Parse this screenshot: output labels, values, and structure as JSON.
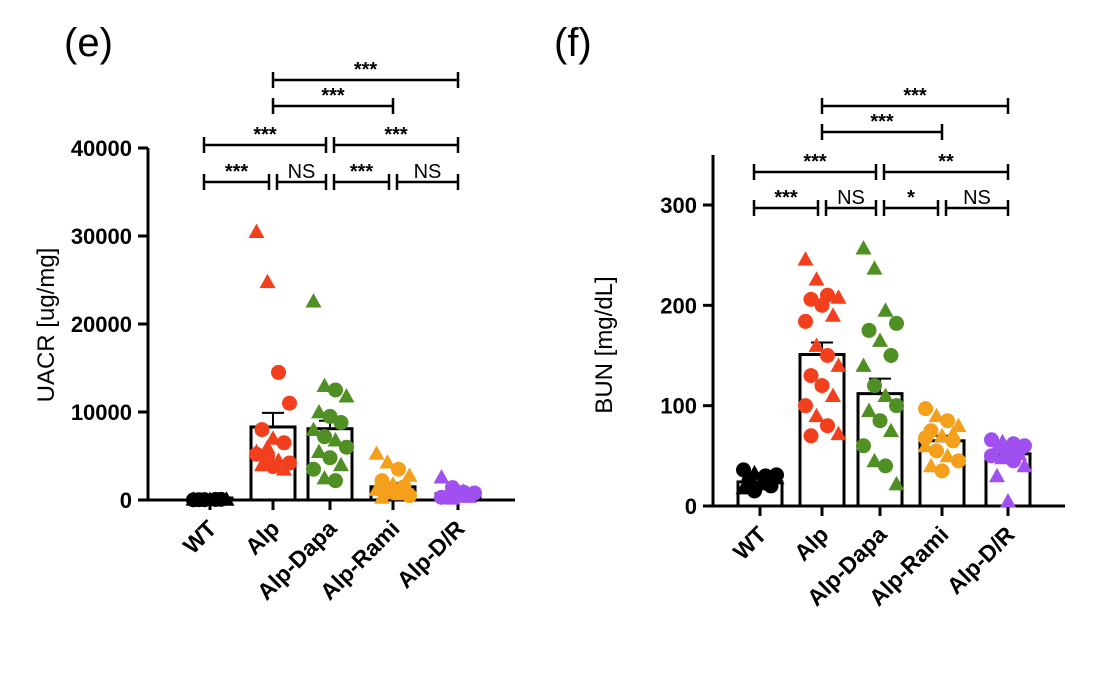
{
  "chart_data": [
    {
      "panel": "(e)",
      "type": "bar",
      "ylabel": "UACR [ug/mg]",
      "xlabel": "",
      "ylim": [
        0,
        40000
      ],
      "yticks": [
        0,
        10000,
        20000,
        30000,
        40000
      ],
      "categories": [
        "WT",
        "Alp",
        "Alp-Dapa",
        "Alp-Rami",
        "Alp-D/R"
      ],
      "colors": [
        "#000000",
        "#f2401e",
        "#4f8f23",
        "#f5a01a",
        "#a050f0"
      ],
      "means": [
        50,
        8300,
        8100,
        1500,
        700
      ],
      "sem": [
        50,
        1600,
        900,
        400,
        200
      ],
      "points": [
        [
          [
            20,
            "c"
          ],
          [
            40,
            "t"
          ],
          [
            60,
            "c"
          ],
          [
            80,
            "t"
          ],
          [
            30,
            "c"
          ],
          [
            50,
            "t"
          ],
          [
            70,
            "c"
          ],
          [
            90,
            "t"
          ],
          [
            35,
            "c"
          ],
          [
            45,
            "t"
          ]
        ],
        [
          [
            30500,
            "t"
          ],
          [
            24800,
            "t"
          ],
          [
            14500,
            "c"
          ],
          [
            11000,
            "c"
          ],
          [
            8000,
            "c"
          ],
          [
            7000,
            "t"
          ],
          [
            6500,
            "c"
          ],
          [
            5500,
            "t"
          ],
          [
            5000,
            "c"
          ],
          [
            4500,
            "t"
          ],
          [
            4200,
            "c"
          ],
          [
            4000,
            "t"
          ],
          [
            3800,
            "c"
          ],
          [
            3500,
            "t"
          ],
          [
            5200,
            "c"
          ],
          [
            6000,
            "t"
          ]
        ],
        [
          [
            22600,
            "t"
          ],
          [
            13000,
            "t"
          ],
          [
            12500,
            "c"
          ],
          [
            11800,
            "t"
          ],
          [
            10000,
            "t"
          ],
          [
            9500,
            "c"
          ],
          [
            8800,
            "c"
          ],
          [
            8000,
            "t"
          ],
          [
            7200,
            "c"
          ],
          [
            6800,
            "t"
          ],
          [
            6000,
            "c"
          ],
          [
            5500,
            "t"
          ],
          [
            4800,
            "c"
          ],
          [
            4000,
            "t"
          ],
          [
            3500,
            "c"
          ],
          [
            2500,
            "t"
          ],
          [
            2200,
            "c"
          ]
        ],
        [
          [
            5300,
            "t"
          ],
          [
            4300,
            "t"
          ],
          [
            3500,
            "c"
          ],
          [
            2800,
            "t"
          ],
          [
            2200,
            "c"
          ],
          [
            1800,
            "t"
          ],
          [
            1500,
            "c"
          ],
          [
            1200,
            "t"
          ],
          [
            900,
            "c"
          ],
          [
            700,
            "t"
          ],
          [
            500,
            "c"
          ],
          [
            300,
            "t"
          ],
          [
            1000,
            "c"
          ],
          [
            1600,
            "t"
          ]
        ],
        [
          [
            2600,
            "t"
          ],
          [
            1400,
            "c"
          ],
          [
            1000,
            "t"
          ],
          [
            800,
            "c"
          ],
          [
            600,
            "t"
          ],
          [
            500,
            "c"
          ],
          [
            400,
            "t"
          ],
          [
            300,
            "c"
          ],
          [
            200,
            "t"
          ],
          [
            900,
            "c"
          ]
        ]
      ],
      "comparisons": [
        {
          "from": 1,
          "to": 4,
          "label": "***"
        },
        {
          "from": 1,
          "to": 3,
          "label": "***"
        },
        {
          "from": 0,
          "to": 2,
          "label": "***"
        },
        {
          "from": 2,
          "to": 4,
          "label": "***"
        },
        {
          "from": 0,
          "to": 1,
          "label": "***"
        },
        {
          "from": 1,
          "to": 2,
          "label": "NS"
        },
        {
          "from": 2,
          "to": 3,
          "label": "***"
        },
        {
          "from": 3,
          "to": 4,
          "label": "NS"
        }
      ]
    },
    {
      "panel": "(f)",
      "type": "bar",
      "ylabel": "BUN [mg/dL]",
      "xlabel": "",
      "ylim": [
        0,
        350
      ],
      "yticks": [
        0,
        100,
        200,
        300
      ],
      "categories": [
        "WT",
        "Alp",
        "Alp-Dapa",
        "Alp-Rami",
        "Alp-D/R"
      ],
      "colors": [
        "#000000",
        "#f2401e",
        "#4f8f23",
        "#f5a01a",
        "#a050f0"
      ],
      "means": [
        24,
        151,
        112,
        65,
        52
      ],
      "sem": [
        3,
        12,
        15,
        5,
        4
      ],
      "points": [
        [
          [
            36,
            "c"
          ],
          [
            33,
            "t"
          ],
          [
            30,
            "c"
          ],
          [
            28,
            "t"
          ],
          [
            25,
            "c"
          ],
          [
            22,
            "t"
          ],
          [
            20,
            "c"
          ],
          [
            18,
            "t"
          ],
          [
            15,
            "c"
          ],
          [
            27,
            "t"
          ],
          [
            31,
            "c"
          ],
          [
            24,
            "t"
          ]
        ],
        [
          [
            246,
            "t"
          ],
          [
            226,
            "t"
          ],
          [
            210,
            "c"
          ],
          [
            208,
            "t"
          ],
          [
            206,
            "c"
          ],
          [
            200,
            "c"
          ],
          [
            190,
            "t"
          ],
          [
            184,
            "c"
          ],
          [
            160,
            "t"
          ],
          [
            150,
            "c"
          ],
          [
            140,
            "t"
          ],
          [
            130,
            "c"
          ],
          [
            120,
            "c"
          ],
          [
            110,
            "t"
          ],
          [
            100,
            "c"
          ],
          [
            90,
            "t"
          ],
          [
            80,
            "c"
          ],
          [
            72,
            "t"
          ],
          [
            70,
            "c"
          ]
        ],
        [
          [
            257,
            "t"
          ],
          [
            237,
            "t"
          ],
          [
            195,
            "t"
          ],
          [
            182,
            "c"
          ],
          [
            175,
            "c"
          ],
          [
            165,
            "t"
          ],
          [
            150,
            "c"
          ],
          [
            140,
            "t"
          ],
          [
            120,
            "c"
          ],
          [
            110,
            "t"
          ],
          [
            100,
            "c"
          ],
          [
            95,
            "t"
          ],
          [
            85,
            "c"
          ],
          [
            75,
            "t"
          ],
          [
            60,
            "c"
          ],
          [
            45,
            "t"
          ],
          [
            40,
            "c"
          ],
          [
            22,
            "t"
          ]
        ],
        [
          [
            97,
            "c"
          ],
          [
            90,
            "t"
          ],
          [
            85,
            "c"
          ],
          [
            80,
            "t"
          ],
          [
            75,
            "c"
          ],
          [
            70,
            "t"
          ],
          [
            65,
            "c"
          ],
          [
            60,
            "t"
          ],
          [
            55,
            "c"
          ],
          [
            50,
            "t"
          ],
          [
            45,
            "c"
          ],
          [
            40,
            "t"
          ],
          [
            35,
            "c"
          ],
          [
            72,
            "t"
          ],
          [
            68,
            "c"
          ]
        ],
        [
          [
            66,
            "c"
          ],
          [
            64,
            "t"
          ],
          [
            62,
            "c"
          ],
          [
            60,
            "c"
          ],
          [
            58,
            "t"
          ],
          [
            55,
            "c"
          ],
          [
            52,
            "t"
          ],
          [
            50,
            "c"
          ],
          [
            48,
            "t"
          ],
          [
            45,
            "c"
          ],
          [
            40,
            "t"
          ],
          [
            30,
            "t"
          ],
          [
            5,
            "t"
          ],
          [
            56,
            "c"
          ]
        ]
      ],
      "comparisons": [
        {
          "from": 1,
          "to": 4,
          "label": "***"
        },
        {
          "from": 1,
          "to": 3,
          "label": "***"
        },
        {
          "from": 0,
          "to": 2,
          "label": "***"
        },
        {
          "from": 2,
          "to": 4,
          "label": "**"
        },
        {
          "from": 0,
          "to": 1,
          "label": "***"
        },
        {
          "from": 1,
          "to": 2,
          "label": "NS"
        },
        {
          "from": 2,
          "to": 3,
          "label": "*"
        },
        {
          "from": 3,
          "to": 4,
          "label": "NS"
        }
      ]
    }
  ]
}
